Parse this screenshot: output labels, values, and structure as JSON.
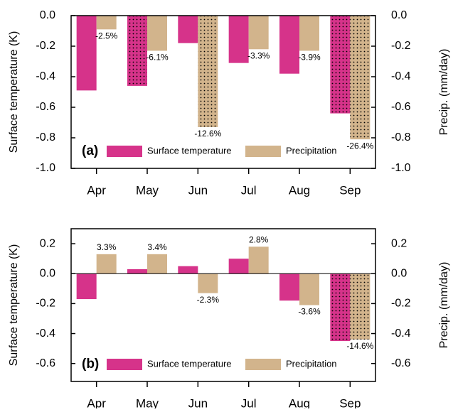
{
  "chart_data": [
    {
      "type": "bar",
      "panel_label": "(a)",
      "y_label": "Surface temperature (K)",
      "y2_label": "Precip. (mm/day)",
      "categories": [
        "Apr",
        "May",
        "Jun",
        "Jul",
        "Aug",
        "Sep"
      ],
      "series": [
        {
          "name": "Surface temperature",
          "color": "#d6338a",
          "axis": "y",
          "values": [
            -0.49,
            -0.46,
            -0.18,
            -0.31,
            -0.38,
            -0.64
          ],
          "stippled": [
            false,
            true,
            false,
            false,
            false,
            true
          ]
        },
        {
          "name": "Precipitation",
          "color": "#d2b48c",
          "axis": "y2",
          "values": [
            -0.09,
            -0.23,
            -0.73,
            -0.22,
            -0.23,
            -0.81
          ],
          "stippled": [
            false,
            false,
            true,
            false,
            false,
            true
          ],
          "annotations": [
            "-2.5%",
            "-6.1%",
            "-12.6%",
            "-3.3%",
            "-3.9%",
            "-26.4%"
          ]
        }
      ],
      "ylim": [
        -1,
        0
      ],
      "yticks": [
        {
          "value": -1,
          "label": "-1.0"
        },
        -0.8,
        -0.6,
        -0.4,
        -0.2,
        {
          "value": 0,
          "label": "0.0"
        }
      ],
      "y2lim": [
        -1,
        0
      ],
      "y2ticks": [
        {
          "value": -1,
          "label": "-1.0"
        },
        -0.8,
        -0.6,
        -0.4,
        -0.2,
        {
          "value": 0,
          "label": "0.0"
        }
      ]
    },
    {
      "type": "bar",
      "panel_label": "(b)",
      "y_label": "Surface temperature (K)",
      "y2_label": "Precip. (mm/day)",
      "categories": [
        "Apr",
        "May",
        "Jun",
        "Jul",
        "Aug",
        "Sep"
      ],
      "series": [
        {
          "name": "Surface temperature",
          "color": "#d6338a",
          "axis": "y",
          "values": [
            -0.17,
            0.03,
            0.05,
            0.1,
            -0.18,
            -0.45
          ],
          "stippled": [
            false,
            false,
            false,
            false,
            false,
            true
          ]
        },
        {
          "name": "Precipitation",
          "color": "#d2b48c",
          "axis": "y2",
          "values": [
            0.13,
            0.13,
            -0.13,
            0.18,
            -0.21,
            -0.44
          ],
          "stippled": [
            false,
            false,
            false,
            false,
            false,
            true
          ],
          "annotations": [
            "3.3%",
            "3.4%",
            "-2.3%",
            "2.8%",
            "-3.6%",
            "-14.6%"
          ]
        }
      ],
      "ylim": [
        -0.72,
        0.3
      ],
      "yticks": [
        -0.6,
        -0.4,
        -0.2,
        {
          "value": 0,
          "label": "0.0"
        },
        0.2
      ],
      "y2lim": [
        -0.72,
        0.3
      ],
      "y2ticks": [
        -0.6,
        -0.4,
        -0.2,
        {
          "value": 0,
          "label": "0.0"
        },
        0.2
      ]
    }
  ]
}
